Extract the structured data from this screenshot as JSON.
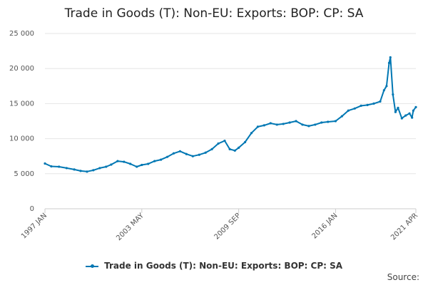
{
  "colors": {
    "series": "#0077b3",
    "grid": "#e6e6e6",
    "axis": "#cccccc"
  },
  "source_label": "Source:",
  "chart_data": {
    "type": "line",
    "title": "Trade in Goods (T): Non-EU: Exports: BOP: CP: SA",
    "ylim": [
      0,
      25000
    ],
    "yticks": [
      0,
      5000,
      10000,
      15000,
      20000,
      25000
    ],
    "ytick_labels": [
      "0",
      "5 000",
      "10 000",
      "15 000",
      "20 000",
      "25 000"
    ],
    "x_range": [
      "1997 JAN",
      "2021 APR"
    ],
    "xtick_labels": [
      "1997 JAN",
      "2003 MAY",
      "2009 SEP",
      "2016 JAN",
      "2021 APR"
    ],
    "legend_position": "bottom",
    "grid": true,
    "series": [
      {
        "name": "Trade in Goods (T): Non-EU: Exports: BOP: CP: SA",
        "points": [
          [
            "1997 JAN",
            6450
          ],
          [
            "1997 JUN",
            6050
          ],
          [
            "1997 DEC",
            6000
          ],
          [
            "1998 JUN",
            5800
          ],
          [
            "1998 DEC",
            5600
          ],
          [
            "1999 MAY",
            5400
          ],
          [
            "1999 OCT",
            5300
          ],
          [
            "2000 MAR",
            5500
          ],
          [
            "2000 AUG",
            5800
          ],
          [
            "2001 JAN",
            6000
          ],
          [
            "2001 MAY",
            6300
          ],
          [
            "2001 OCT",
            6800
          ],
          [
            "2002 MAR",
            6700
          ],
          [
            "2002 AUG",
            6400
          ],
          [
            "2003 JAN",
            6000
          ],
          [
            "2003 MAY",
            6250
          ],
          [
            "2003 OCT",
            6400
          ],
          [
            "2004 MAR",
            6800
          ],
          [
            "2004 AUG",
            7000
          ],
          [
            "2005 JAN",
            7400
          ],
          [
            "2005 JUN",
            7900
          ],
          [
            "2005 NOV",
            8200
          ],
          [
            "2006 APR",
            7800
          ],
          [
            "2006 SEP",
            7500
          ],
          [
            "2007 FEB",
            7700
          ],
          [
            "2007 JUL",
            8000
          ],
          [
            "2007 DEC",
            8500
          ],
          [
            "2008 MAY",
            9300
          ],
          [
            "2008 OCT",
            9700
          ],
          [
            "2009 FEB",
            8500
          ],
          [
            "2009 JUN",
            8300
          ],
          [
            "2009 SEP",
            8700
          ],
          [
            "2010 FEB",
            9500
          ],
          [
            "2010 JUL",
            10800
          ],
          [
            "2010 DEC",
            11700
          ],
          [
            "2011 MAY",
            11900
          ],
          [
            "2011 OCT",
            12200
          ],
          [
            "2012 MAR",
            12000
          ],
          [
            "2012 AUG",
            12100
          ],
          [
            "2013 JAN",
            12300
          ],
          [
            "2013 JUN",
            12500
          ],
          [
            "2013 NOV",
            12000
          ],
          [
            "2014 APR",
            11800
          ],
          [
            "2014 SEP",
            12000
          ],
          [
            "2015 FEB",
            12300
          ],
          [
            "2015 JUL",
            12400
          ],
          [
            "2016 JAN",
            12500
          ],
          [
            "2016 JUN",
            13200
          ],
          [
            "2016 NOV",
            14000
          ],
          [
            "2017 APR",
            14300
          ],
          [
            "2017 SEP",
            14700
          ],
          [
            "2018 FEB",
            14800
          ],
          [
            "2018 JUL",
            15000
          ],
          [
            "2018 DEC",
            15300
          ],
          [
            "2019 MAR",
            16900
          ],
          [
            "2019 MAY",
            17500
          ],
          [
            "2019 JUL",
            20800
          ],
          [
            "2019 AUG",
            21600
          ],
          [
            "2019 OCT",
            16300
          ],
          [
            "2019 DEC",
            13800
          ],
          [
            "2020 FEB",
            14400
          ],
          [
            "2020 MAY",
            12900
          ],
          [
            "2020 AUG",
            13300
          ],
          [
            "2020 NOV",
            13600
          ],
          [
            "2021 JAN",
            13000
          ],
          [
            "2021 FEB",
            14000
          ],
          [
            "2021 APR",
            14500
          ]
        ]
      }
    ]
  }
}
